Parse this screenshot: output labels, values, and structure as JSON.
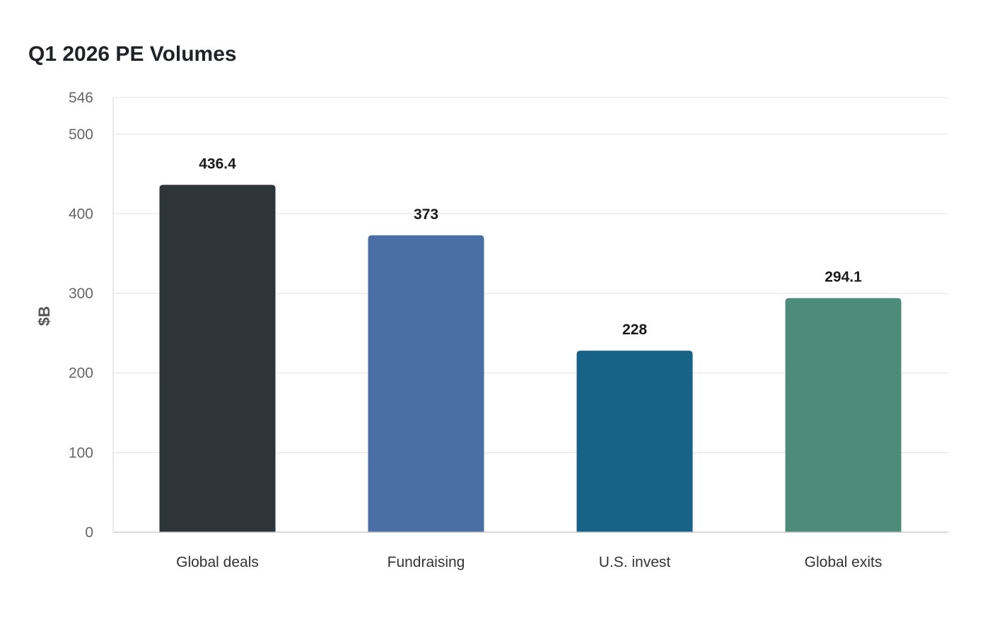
{
  "chart_data": {
    "type": "bar",
    "title": "Q1 2026 PE Volumes",
    "xlabel": "",
    "ylabel": "$B",
    "categories": [
      "Global deals",
      "Fundraising",
      "U.S. invest",
      "Global exits"
    ],
    "values": [
      436.4,
      373,
      228,
      294.1
    ],
    "value_labels": [
      "436.4",
      "373",
      "228",
      "294.1"
    ],
    "colors": [
      "#2e3538",
      "#4a6fa5",
      "#196287",
      "#4e8c7a"
    ],
    "ylim": [
      0,
      546
    ],
    "yticks": [
      0,
      100,
      200,
      300,
      400,
      500,
      546
    ],
    "grid": true,
    "legend": "none"
  }
}
